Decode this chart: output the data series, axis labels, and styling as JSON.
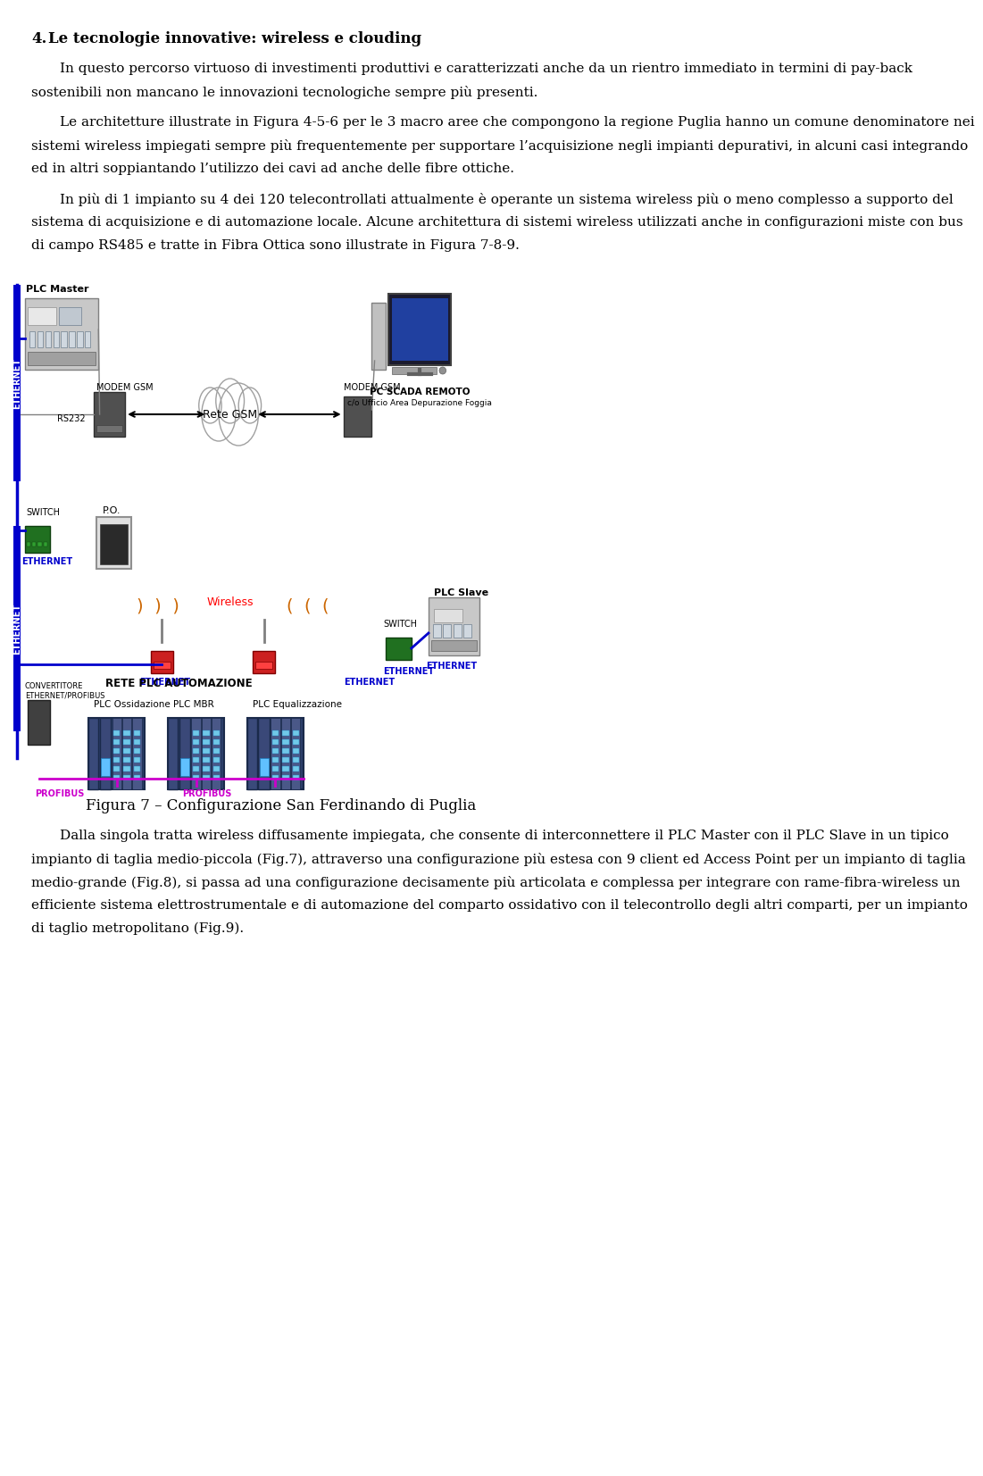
{
  "title_number": "4.",
  "title_text": "Le tecnologie innovative: wireless e clouding",
  "paragraph1": "In questo percorso virtuoso di investimenti produttivi e caratterizzati anche da un rientro immediato in termini di pay-back sostenibili non mancano le innovazioni tecnologiche sempre più presenti.",
  "paragraph2": "Le architetture illustrate in Figura 4-5-6 per le 3 macro aree che compongono la regione Puglia hanno un comune denominatore nei sistemi wireless impiegati sempre più frequentemente per supportare l’acquisizione negli impianti depurativi, in alcuni casi integrando ed in altri soppiantando l’utilizzo dei cavi ad anche delle fibre ottiche.",
  "paragraph3": "In più di 1 impianto su 4 dei 120 telecontrollati attualmente è operante un sistema wireless più o meno complesso a supporto del sistema di acquisizione e di automazione locale. Alcune architettura di sistemi wireless utilizzati anche in configurazioni miste con bus di campo RS485 e tratte in Fibra Ottica sono illustrate in Figura 7-8-9.",
  "figure_caption": "Figura 7 – Configurazione San Ferdinando di Puglia",
  "paragraph4": "Dalla  singola  tratta  wireless  diffusamente  impiegata,  che  consente  di interconnettere il PLC Master con il PLC Slave in un tipico impianto di taglia medio-piccola (Fig.7), attraverso una configurazione più estesa con 9 client ed Access Point per un impianto di taglia medio-grande (Fig.8), si passa   ad una configurazione decisamente più articolata e complessa per integrare con rame-fibra-wireless un efficiente sistema elettrostrumentale e di automazione del comparto ossidativo con il telecontrollo degli altri comparti, per un impianto di taglio metropolitano (Fig.9).",
  "bg_color": "#ffffff",
  "text_color": "#000000",
  "blue_color": "#0000cc",
  "magenta_color": "#cc00cc",
  "red_color": "#cc0000",
  "ethernet_color": "#0000dd",
  "title_fontsize": 12,
  "body_fontsize": 11,
  "caption_fontsize": 12
}
